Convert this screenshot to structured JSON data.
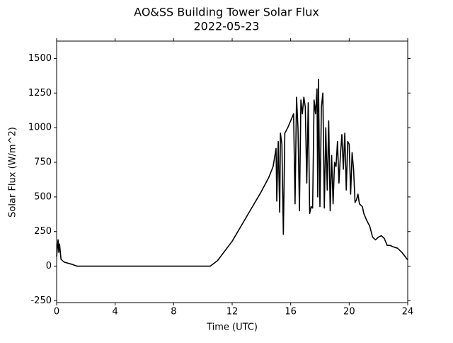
{
  "chart_data": {
    "type": "line",
    "title": "AO&SS Building Tower Solar Flux",
    "subtitle": "2022-05-23",
    "x_label": "Time (UTC)",
    "y_label": "Solar Flux (W/m^2)",
    "xlim": [
      0,
      24
    ],
    "xticks": [
      0,
      4,
      8,
      12,
      16,
      20,
      24
    ],
    "ylim": [
      -263,
      1625
    ],
    "yticks": [
      -250,
      0,
      250,
      500,
      750,
      1000,
      1250,
      1500
    ],
    "series": [
      {
        "color": "#000000",
        "x": [
          0,
          0.1,
          0.15,
          0.2,
          0.3,
          0.5,
          1,
          1.4,
          10.5,
          11,
          12,
          13,
          14,
          14.5,
          14.8,
          15,
          15.05,
          15.15,
          15.25,
          15.3,
          15.4,
          15.5,
          15.6,
          15.8,
          16,
          16.2,
          16.3,
          16.4,
          16.5,
          16.6,
          16.7,
          16.8,
          16.9,
          17,
          17.1,
          17.2,
          17.3,
          17.4,
          17.5,
          17.6,
          17.7,
          17.8,
          17.85,
          17.9,
          18,
          18.1,
          18.2,
          18.3,
          18.4,
          18.5,
          18.6,
          18.7,
          18.8,
          18.9,
          19,
          19.1,
          19.2,
          19.3,
          19.4,
          19.5,
          19.6,
          19.7,
          19.8,
          19.9,
          20,
          20.1,
          20.2,
          20.3,
          20.4,
          20.5,
          20.6,
          20.7,
          20.9,
          21,
          21.2,
          21.4,
          21.6,
          21.8,
          22,
          22.2,
          22.4,
          22.6,
          22.8,
          23,
          23.3,
          23.6,
          24
        ],
        "values": [
          70,
          190,
          100,
          160,
          50,
          30,
          15,
          0,
          0,
          40,
          180,
          360,
          540,
          640,
          720,
          850,
          470,
          900,
          390,
          960,
          880,
          230,
          960,
          1000,
          1050,
          1100,
          450,
          1220,
          1000,
          400,
          1200,
          1100,
          1220,
          1150,
          600,
          1180,
          380,
          430,
          420,
          1200,
          1100,
          1280,
          500,
          1350,
          430,
          1150,
          1250,
          420,
          1000,
          550,
          1050,
          400,
          800,
          450,
          750,
          720,
          900,
          600,
          800,
          950,
          700,
          960,
          550,
          900,
          880,
          520,
          820,
          700,
          460,
          480,
          520,
          450,
          430,
          380,
          330,
          290,
          210,
          190,
          210,
          220,
          200,
          150,
          150,
          140,
          130,
          100,
          45
        ]
      }
    ]
  }
}
